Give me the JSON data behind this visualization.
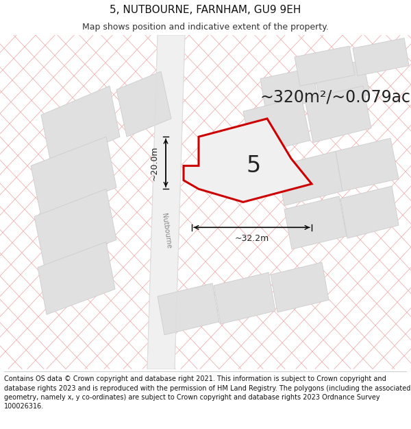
{
  "title": "5, NUTBOURNE, FARNHAM, GU9 9EH",
  "subtitle": "Map shows position and indicative extent of the property.",
  "area_text": "~320m²/~0.079ac.",
  "label_number": "5",
  "dim_horizontal": "~32.2m",
  "dim_vertical": "~20.0m",
  "street_label": "Nutbourne",
  "footer": "Contains OS data © Crown copyright and database right 2021. This information is subject to Crown copyright and database rights 2023 and is reproduced with the permission of HM Land Registry. The polygons (including the associated geometry, namely x, y co-ordinates) are subject to Crown copyright and database rights 2023 Ordnance Survey 100026316.",
  "bg_color": "#ffffff",
  "map_bg": "#f7f7f7",
  "hatch_color": "#f0b8b8",
  "property_fill": "#f0f0f0",
  "property_edge": "#cc0000",
  "neighbor_fill": "#e0e0e0",
  "neighbor_edge": "#d0d0d0",
  "pink_line_color": "#f0b0b0",
  "title_fontsize": 11,
  "subtitle_fontsize": 9,
  "area_fontsize": 17,
  "label_fontsize": 24,
  "footer_fontsize": 7.0,
  "dim_fontsize": 9
}
